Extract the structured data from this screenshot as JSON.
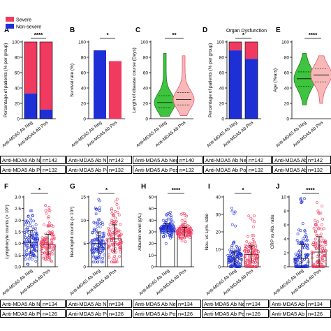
{
  "chart_data": [
    {
      "panel": "A",
      "type": "bar",
      "stacked": true,
      "categories": [
        "Anti-MDA5 Ab Neg",
        "Anti-MDA5 Ab Pos"
      ],
      "series": [
        {
          "name": "Non-severe",
          "values": [
            33,
            12
          ],
          "color": "#1f2fd6"
        },
        {
          "name": "Severe",
          "values": [
            67,
            88
          ],
          "color": "#f03a5f"
        }
      ],
      "ylabel": "Percentage of patients (% per group)",
      "ylim": [
        0,
        100
      ],
      "yticks": [
        "0",
        "20",
        "40",
        "60",
        "80",
        "100"
      ],
      "significance": "****",
      "legend": "top-left",
      "n": [
        "n=142",
        "n=132"
      ]
    },
    {
      "panel": "B",
      "type": "bar",
      "categories": [
        "Anti-MDA5 Ab Neg",
        "Anti-MDA5 Ab Pos"
      ],
      "values": [
        89,
        75
      ],
      "colors": [
        "#1f2fd6",
        "#f03a5f"
      ],
      "ylabel": "Survival rate (%)",
      "ylim": [
        0,
        100
      ],
      "yticks": [
        "0",
        "20",
        "40",
        "60",
        "80",
        "100"
      ],
      "significance": "*",
      "n": [
        "n=142",
        "n=132"
      ]
    },
    {
      "panel": "C",
      "type": "violin",
      "categories": [
        "Anti-MDA5 Ab Neg",
        "Anti-MDA5 Ab Pos"
      ],
      "series": [
        {
          "name": "Anti-MDA5 Ab Neg",
          "min": 3,
          "q1": 14,
          "median": 21,
          "q3": 30,
          "max": 85,
          "color": "#3ec43e"
        },
        {
          "name": "Anti-MDA5 Ab Pos",
          "min": 4,
          "q1": 18,
          "median": 25,
          "q3": 34,
          "max": 82,
          "color": "#f7b8b8"
        }
      ],
      "ylabel": "Length of disease course (Days)",
      "ylim": [
        0,
        100
      ],
      "yticks": [
        "0",
        "20",
        "40",
        "60",
        "80",
        "100"
      ],
      "significance": "**",
      "n": [
        "n=140",
        "n=132"
      ]
    },
    {
      "panel": "D",
      "type": "bar",
      "stacked": true,
      "title": "Organ Dysfunction",
      "categories": [
        "Anti-MDA5 Ab Neg",
        "Anti-MDA5 Ab Pos"
      ],
      "series": [
        {
          "name": "Non-severe",
          "values": [
            89,
            78
          ],
          "color": "#1f2fd6"
        },
        {
          "name": "Severe",
          "values": [
            11,
            22
          ],
          "color": "#f03a5f"
        }
      ],
      "ylabel": "Percentage of patients (% per group)",
      "ylim": [
        0,
        100
      ],
      "yticks": [
        "0",
        "20",
        "40",
        "60",
        "80",
        "100"
      ],
      "significance": "*",
      "n": [
        "n=142",
        "n=132"
      ]
    },
    {
      "panel": "E",
      "type": "violin",
      "categories": [
        "Anti-MDA5 Ab Neg",
        "Anti-MDA5 Ab Pos"
      ],
      "series": [
        {
          "name": "Anti-MDA5 Ab Neg",
          "min": 18,
          "q1": 42,
          "median": 52,
          "q3": 61,
          "max": 85,
          "color": "#3ec43e"
        },
        {
          "name": "Anti-MDA5 Ab Pos",
          "min": 20,
          "q1": 48,
          "median": 57,
          "q3": 65,
          "max": 82,
          "color": "#f7b8b8"
        }
      ],
      "ylabel": "Age (Years)",
      "ylim": [
        0,
        100
      ],
      "yticks": [
        "0",
        "20",
        "40",
        "60",
        "80",
        "100"
      ],
      "significance": "****",
      "n": [
        "n=142",
        "n=132"
      ]
    },
    {
      "panel": "F",
      "type": "scatter-bar",
      "categories": [
        "Anti-MDA5 Ab Neg",
        "Anti-MDA5 Ab Pos"
      ],
      "values": [
        1.05,
        0.95
      ],
      "sd": [
        0.5,
        0.45
      ],
      "spread": [
        [
          0.1,
          2.6
        ],
        [
          0.1,
          2.7
        ]
      ],
      "ylabel": "Lymphocyte counts (× 10⁹)",
      "ylim": [
        0,
        3
      ],
      "yticks": [
        "0.0",
        "0.5",
        "1.0",
        "1.5",
        "2.0",
        "2.5",
        "3.0"
      ],
      "significance": "*",
      "n": [
        "n=134",
        "n=126"
      ]
    },
    {
      "panel": "G",
      "type": "scatter-bar",
      "categories": [
        "Anti-MDA5 Ab Neg",
        "Anti-MDA5 Ab Pos"
      ],
      "values": [
        5,
        6
      ],
      "sd": [
        2.5,
        3
      ],
      "spread": [
        [
          1,
          14.5
        ],
        [
          1,
          14.5
        ]
      ],
      "ylabel": "Neutrophil counts (× 10⁹)",
      "ylim": [
        0,
        15
      ],
      "yticks": [
        "0",
        "5",
        "10",
        "15"
      ],
      "significance": "*",
      "n": [
        "n=134",
        "n=126"
      ]
    },
    {
      "panel": "H",
      "type": "scatter-bar",
      "categories": [
        "Anti-MDA5 Ab Neg",
        "Anti-MDA5 Ab Pos"
      ],
      "values": [
        33,
        30
      ],
      "sd": [
        4,
        4
      ],
      "spread": [
        [
          20,
          48
        ],
        [
          18,
          46
        ]
      ],
      "ylabel": "Albumin level (g/L)",
      "ylim": [
        0,
        60
      ],
      "yticks": [
        "0",
        "10",
        "20",
        "30",
        "40",
        "50",
        "60"
      ],
      "significance": "****",
      "n": [
        "n=134",
        "n=126"
      ]
    },
    {
      "panel": "I",
      "type": "scatter-bar",
      "categories": [
        "Anti-MDA5 Ab Neg",
        "Anti-MDA5 Ab Pos"
      ],
      "values": [
        5,
        7
      ],
      "sd": [
        4,
        5
      ],
      "spread": [
        [
          0,
          34
        ],
        [
          0,
          33
        ]
      ],
      "ylabel": "Neu. vs Lym. ratio",
      "ylim": [
        0,
        40
      ],
      "yticks": [
        "0",
        "10",
        "20",
        "30",
        "40"
      ],
      "significance": "*",
      "n": [
        "n=134",
        "n=126"
      ]
    },
    {
      "panel": "J",
      "type": "scatter-bar",
      "categories": [
        "Anti-MDA5 Ab Neg",
        "Anti-MDA5 Ab Pos"
      ],
      "values": [
        1.2,
        2.1
      ],
      "sd": [
        2,
        2.2
      ],
      "spread": [
        [
          0,
          10
        ],
        [
          0,
          10
        ]
      ],
      "ylabel": "CRP vs Alb. ratio",
      "ylim": [
        0,
        10
      ],
      "yticks": [
        "0",
        "2",
        "4",
        "6",
        "8",
        "10"
      ],
      "significance": "****",
      "n": [
        "n=134",
        "n=126"
      ]
    }
  ],
  "labels": {
    "panels": [
      "A",
      "B",
      "C",
      "D",
      "E",
      "F",
      "G",
      "H",
      "I",
      "J"
    ],
    "neg": "Anti-MDA5 Ab Neg",
    "pos": "Anti-MDA5 Ab Pos"
  }
}
